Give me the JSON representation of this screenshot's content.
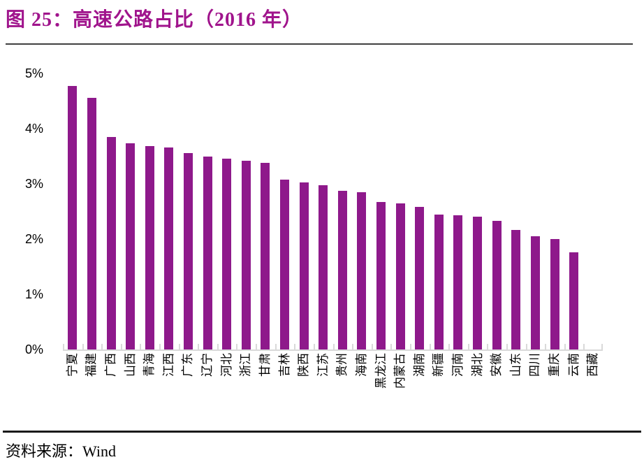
{
  "figure": {
    "title": "图 25：高速公路占比（2016 年）",
    "source_label": "资料来源：Wind"
  },
  "colors": {
    "bar": "#8E198B",
    "title": "#A0148C",
    "title_rule": "#404040",
    "bottom_rule": "#1A1A1A",
    "axis": "#D9D9D9",
    "text": "#000000"
  },
  "chart_data": {
    "type": "bar",
    "title": "高速公路占比（2016 年）",
    "categories": [
      "宁夏",
      "福建",
      "广西",
      "山西",
      "青海",
      "江西",
      "广东",
      "辽宁",
      "河北",
      "浙江",
      "甘肃",
      "吉林",
      "陕西",
      "江苏",
      "贵州",
      "海南",
      "黑龙江",
      "内蒙古",
      "湖南",
      "新疆",
      "河南",
      "湖北",
      "安徽",
      "山东",
      "四川",
      "重庆",
      "云南",
      "西藏"
    ],
    "values": [
      4.77,
      4.56,
      3.85,
      3.73,
      3.69,
      3.66,
      3.56,
      3.5,
      3.45,
      3.42,
      3.38,
      3.08,
      3.02,
      2.98,
      2.87,
      2.85,
      2.67,
      2.65,
      2.58,
      2.44,
      2.43,
      2.41,
      2.33,
      2.17,
      2.05,
      2.0,
      1.76,
      0.0
    ],
    "xlabel": "",
    "ylabel": "",
    "ylim": [
      0,
      5
    ],
    "yticks": [
      "5%",
      "4%",
      "3%",
      "2%",
      "1%",
      "0%"
    ],
    "ytick_format": "percent",
    "grid": false,
    "legend": false,
    "bar_color": "#8E198B",
    "x_label_orientation": "vertical-rotated-90ccw"
  }
}
